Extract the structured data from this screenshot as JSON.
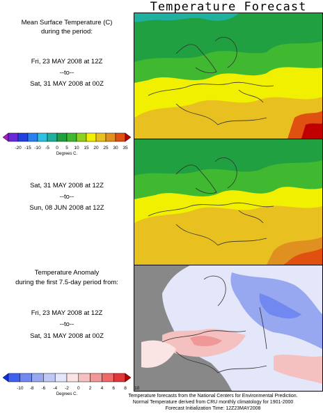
{
  "title": "Temperature Forecast",
  "panel1": {
    "heading": [
      "Mean Surface Temperature (C)",
      "during the period:"
    ],
    "start": "Fri, 23 MAY 2008 at 12Z",
    "to": "--to--",
    "end": "Sat, 31 MAY 2008 at 00Z"
  },
  "panel2": {
    "start": "Sat, 31 MAY 2008 at 12Z",
    "to": "--to--",
    "end": "Sun, 08 JUN 2008 at 12Z"
  },
  "panel3": {
    "heading": [
      "Temperature Anomaly",
      "during the first 7.5-day period from:"
    ],
    "start": "Fri, 23 MAY 2008 at 12Z",
    "to": "--to--",
    "end": "Sat, 31 MAY 2008 at 00Z"
  },
  "temp_scale": {
    "ticks": [
      "-20",
      "-15",
      "-10",
      "-5",
      "0",
      "5",
      "10",
      "15",
      "20",
      "25",
      "30",
      "35"
    ],
    "unit": "Degrees C.",
    "colors": [
      "#a020c0",
      "#6a28d8",
      "#2040e0",
      "#2a80f0",
      "#30c0e0",
      "#20b0a0",
      "#20a040",
      "#40b830",
      "#90d020",
      "#f0f000",
      "#e8c020",
      "#e09020",
      "#e05010",
      "#c00000"
    ]
  },
  "anom_scale": {
    "ticks": [
      "-10",
      "-8",
      "-6",
      "-4",
      "-2",
      "0",
      "2",
      "4",
      "6",
      "8",
      "10"
    ],
    "unit": "Degrees C.",
    "colors": [
      "#1030e0",
      "#4060f0",
      "#7088f0",
      "#98a8f0",
      "#c0c8f4",
      "#e4e6fa",
      "#fae4e4",
      "#f4c0c0",
      "#f09898",
      "#f06868",
      "#e03838",
      "#c00000"
    ]
  },
  "footer": [
    "Temperature forecasts from the National Centers for Environmental Prediction.",
    "Normal Temperature derived from CRU monthly climatology for 1901-2000",
    "Forecast Initialization Time: 12Z23MAY2008"
  ]
}
